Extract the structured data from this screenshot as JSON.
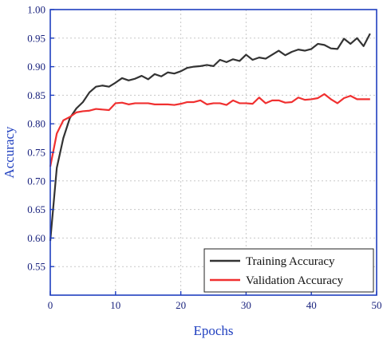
{
  "chart_data": {
    "type": "line",
    "title": "",
    "xlabel": "Epochs",
    "ylabel": "Accuracy",
    "xlim": [
      0,
      50
    ],
    "ylim": [
      0.5,
      1.0
    ],
    "x_ticks": [
      "0",
      "10",
      "20",
      "30",
      "40",
      "50"
    ],
    "y_ticks": [
      "0.55",
      "0.60",
      "0.65",
      "0.70",
      "0.75",
      "0.80",
      "0.85",
      "0.90",
      "0.95",
      "1.00"
    ],
    "grid": true,
    "legend_position": "bottom-right",
    "axis_color": "#1f3fbf",
    "series": [
      {
        "name": "Training Accuracy",
        "color": "#333333",
        "x": [
          0,
          1,
          2,
          3,
          4,
          5,
          6,
          7,
          8,
          9,
          10,
          11,
          12,
          13,
          14,
          15,
          16,
          17,
          18,
          19,
          20,
          21,
          22,
          23,
          24,
          25,
          26,
          27,
          28,
          29,
          30,
          31,
          32,
          33,
          34,
          35,
          36,
          37,
          38,
          39,
          40,
          41,
          42,
          43,
          44,
          45,
          46,
          47,
          48,
          49
        ],
        "values": [
          0.595,
          0.723,
          0.775,
          0.81,
          0.827,
          0.838,
          0.855,
          0.865,
          0.867,
          0.865,
          0.872,
          0.88,
          0.876,
          0.879,
          0.884,
          0.878,
          0.887,
          0.883,
          0.89,
          0.888,
          0.892,
          0.898,
          0.9,
          0.901,
          0.903,
          0.901,
          0.912,
          0.908,
          0.913,
          0.91,
          0.921,
          0.912,
          0.916,
          0.914,
          0.921,
          0.928,
          0.92,
          0.926,
          0.93,
          0.928,
          0.931,
          0.94,
          0.938,
          0.932,
          0.931,
          0.949,
          0.94,
          0.95,
          0.936,
          0.958
        ]
      },
      {
        "name": "Validation Accuracy",
        "color": "#f03030",
        "x": [
          0,
          1,
          2,
          3,
          4,
          5,
          6,
          7,
          8,
          9,
          10,
          11,
          12,
          13,
          14,
          15,
          16,
          17,
          18,
          19,
          20,
          21,
          22,
          23,
          24,
          25,
          26,
          27,
          28,
          29,
          30,
          31,
          32,
          33,
          34,
          35,
          36,
          37,
          38,
          39,
          40,
          41,
          42,
          43,
          44,
          45,
          46,
          47,
          48,
          49
        ],
        "values": [
          0.725,
          0.783,
          0.806,
          0.812,
          0.82,
          0.822,
          0.823,
          0.826,
          0.825,
          0.824,
          0.836,
          0.837,
          0.834,
          0.836,
          0.836,
          0.836,
          0.834,
          0.834,
          0.834,
          0.833,
          0.835,
          0.838,
          0.838,
          0.841,
          0.834,
          0.836,
          0.836,
          0.833,
          0.841,
          0.836,
          0.836,
          0.835,
          0.846,
          0.836,
          0.841,
          0.841,
          0.837,
          0.838,
          0.846,
          0.842,
          0.843,
          0.845,
          0.852,
          0.843,
          0.836,
          0.845,
          0.849,
          0.843,
          0.843,
          0.843
        ]
      }
    ]
  }
}
